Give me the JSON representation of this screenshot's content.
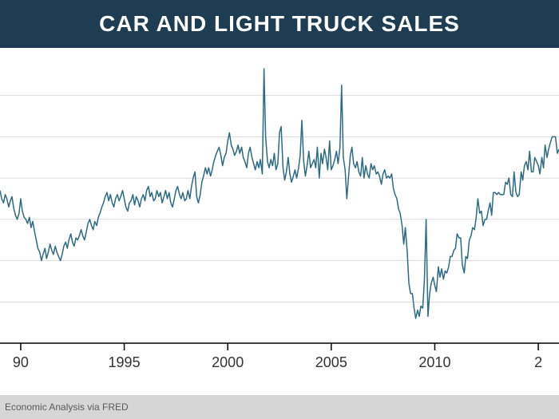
{
  "title": "CAR AND LIGHT TRUCK SALES",
  "title_fontsize": 28,
  "title_bg_color": "#1f3d52",
  "title_text_color": "#ffffff",
  "source_text": "Economic Analysis via FRED",
  "source_bg_color": "#d6d6d6",
  "chart": {
    "type": "line",
    "background_color": "#ffffff",
    "line_color": "#2d6a84",
    "line_width": 1.5,
    "axis_color": "#000000",
    "grid_color": "#c8c8c8",
    "grid_width": 0.6,
    "x_range": [
      1989,
      2016
    ],
    "y_range": [
      8,
      22
    ],
    "y_gridlines": [
      10,
      12,
      14,
      16,
      18,
      20
    ],
    "x_ticks": [
      1990,
      1995,
      2000,
      2005,
      2010,
      2015
    ],
    "x_tick_labels": [
      "90",
      "1995",
      "2000",
      "2005",
      "2010",
      "2"
    ],
    "tick_fontsize": 18,
    "tick_color": "#333333",
    "series": [
      [
        1989.0,
        15.4
      ],
      [
        1989.08,
        15.0
      ],
      [
        1989.17,
        14.8
      ],
      [
        1989.25,
        15.2
      ],
      [
        1989.33,
        15.0
      ],
      [
        1989.42,
        14.6
      ],
      [
        1989.5,
        14.9
      ],
      [
        1989.58,
        15.1
      ],
      [
        1989.67,
        14.5
      ],
      [
        1989.75,
        14.2
      ],
      [
        1989.83,
        14.0
      ],
      [
        1989.92,
        14.3
      ],
      [
        1990.0,
        15.0
      ],
      [
        1990.08,
        14.4
      ],
      [
        1990.17,
        14.1
      ],
      [
        1990.25,
        14.0
      ],
      [
        1990.33,
        13.8
      ],
      [
        1990.42,
        14.1
      ],
      [
        1990.5,
        13.6
      ],
      [
        1990.58,
        13.9
      ],
      [
        1990.67,
        13.4
      ],
      [
        1990.75,
        13.0
      ],
      [
        1990.83,
        12.6
      ],
      [
        1990.92,
        12.4
      ],
      [
        1991.0,
        12.0
      ],
      [
        1991.08,
        12.3
      ],
      [
        1991.17,
        12.6
      ],
      [
        1991.25,
        12.1
      ],
      [
        1991.33,
        12.4
      ],
      [
        1991.42,
        12.8
      ],
      [
        1991.5,
        12.5
      ],
      [
        1991.58,
        12.3
      ],
      [
        1991.67,
        12.7
      ],
      [
        1991.75,
        12.4
      ],
      [
        1991.83,
        12.2
      ],
      [
        1991.92,
        12.0
      ],
      [
        1992.0,
        12.3
      ],
      [
        1992.08,
        12.7
      ],
      [
        1992.17,
        12.9
      ],
      [
        1992.25,
        12.6
      ],
      [
        1992.33,
        13.0
      ],
      [
        1992.42,
        13.3
      ],
      [
        1992.5,
        12.9
      ],
      [
        1992.58,
        12.7
      ],
      [
        1992.67,
        13.1
      ],
      [
        1992.75,
        13.0
      ],
      [
        1992.83,
        13.2
      ],
      [
        1992.92,
        13.5
      ],
      [
        1993.0,
        13.2
      ],
      [
        1993.08,
        13.0
      ],
      [
        1993.17,
        13.4
      ],
      [
        1993.25,
        13.8
      ],
      [
        1993.33,
        14.0
      ],
      [
        1993.42,
        13.7
      ],
      [
        1993.5,
        13.5
      ],
      [
        1993.58,
        13.9
      ],
      [
        1993.67,
        13.7
      ],
      [
        1993.75,
        14.1
      ],
      [
        1993.83,
        14.3
      ],
      [
        1993.92,
        14.6
      ],
      [
        1994.0,
        14.8
      ],
      [
        1994.08,
        15.1
      ],
      [
        1994.17,
        15.3
      ],
      [
        1994.25,
        14.9
      ],
      [
        1994.33,
        15.2
      ],
      [
        1994.42,
        14.8
      ],
      [
        1994.5,
        14.6
      ],
      [
        1994.58,
        15.0
      ],
      [
        1994.67,
        15.2
      ],
      [
        1994.75,
        14.9
      ],
      [
        1994.83,
        15.1
      ],
      [
        1994.92,
        15.4
      ],
      [
        1995.0,
        15.0
      ],
      [
        1995.08,
        14.6
      ],
      [
        1995.17,
        14.4
      ],
      [
        1995.25,
        14.8
      ],
      [
        1995.33,
        14.9
      ],
      [
        1995.42,
        15.2
      ],
      [
        1995.5,
        14.7
      ],
      [
        1995.58,
        15.1
      ],
      [
        1995.67,
        14.9
      ],
      [
        1995.75,
        14.6
      ],
      [
        1995.83,
        15.0
      ],
      [
        1995.92,
        15.2
      ],
      [
        1996.0,
        14.9
      ],
      [
        1996.08,
        15.4
      ],
      [
        1996.17,
        15.6
      ],
      [
        1996.25,
        15.1
      ],
      [
        1996.33,
        15.3
      ],
      [
        1996.42,
        14.9
      ],
      [
        1996.5,
        15.0
      ],
      [
        1996.58,
        15.4
      ],
      [
        1996.67,
        15.1
      ],
      [
        1996.75,
        15.3
      ],
      [
        1996.83,
        14.8
      ],
      [
        1996.92,
        15.1
      ],
      [
        1997.0,
        15.4
      ],
      [
        1997.08,
        15.0
      ],
      [
        1997.17,
        15.3
      ],
      [
        1997.25,
        14.8
      ],
      [
        1997.33,
        14.6
      ],
      [
        1997.42,
        15.0
      ],
      [
        1997.5,
        15.4
      ],
      [
        1997.58,
        15.6
      ],
      [
        1997.67,
        15.2
      ],
      [
        1997.75,
        15.0
      ],
      [
        1997.83,
        15.3
      ],
      [
        1997.92,
        14.9
      ],
      [
        1998.0,
        15.0
      ],
      [
        1998.08,
        15.4
      ],
      [
        1998.17,
        15.0
      ],
      [
        1998.25,
        15.6
      ],
      [
        1998.33,
        16.0
      ],
      [
        1998.42,
        16.3
      ],
      [
        1998.5,
        15.1
      ],
      [
        1998.58,
        14.8
      ],
      [
        1998.67,
        15.2
      ],
      [
        1998.75,
        15.8
      ],
      [
        1998.83,
        16.1
      ],
      [
        1998.92,
        16.5
      ],
      [
        1999.0,
        16.2
      ],
      [
        1999.08,
        16.5
      ],
      [
        1999.17,
        16.1
      ],
      [
        1999.25,
        16.4
      ],
      [
        1999.33,
        16.8
      ],
      [
        1999.42,
        17.1
      ],
      [
        1999.5,
        17.3
      ],
      [
        1999.58,
        17.5
      ],
      [
        1999.67,
        17.1
      ],
      [
        1999.75,
        16.6
      ],
      [
        1999.83,
        17.0
      ],
      [
        1999.92,
        17.2
      ],
      [
        2000.0,
        17.8
      ],
      [
        2000.08,
        18.2
      ],
      [
        2000.17,
        17.6
      ],
      [
        2000.25,
        17.4
      ],
      [
        2000.33,
        17.1
      ],
      [
        2000.42,
        17.3
      ],
      [
        2000.5,
        17.6
      ],
      [
        2000.58,
        17.2
      ],
      [
        2000.67,
        17.5
      ],
      [
        2000.75,
        17.0
      ],
      [
        2000.83,
        16.8
      ],
      [
        2000.92,
        16.5
      ],
      [
        2001.0,
        17.2
      ],
      [
        2001.08,
        17.5
      ],
      [
        2001.17,
        17.0
      ],
      [
        2001.25,
        16.7
      ],
      [
        2001.33,
        16.4
      ],
      [
        2001.42,
        16.8
      ],
      [
        2001.5,
        16.5
      ],
      [
        2001.58,
        16.9
      ],
      [
        2001.67,
        16.2
      ],
      [
        2001.75,
        21.3
      ],
      [
        2001.83,
        18.0
      ],
      [
        2001.92,
        16.8
      ],
      [
        2002.0,
        16.5
      ],
      [
        2002.08,
        16.9
      ],
      [
        2002.17,
        16.6
      ],
      [
        2002.25,
        17.2
      ],
      [
        2002.33,
        16.4
      ],
      [
        2002.42,
        16.7
      ],
      [
        2002.5,
        18.2
      ],
      [
        2002.58,
        18.5
      ],
      [
        2002.67,
        16.5
      ],
      [
        2002.75,
        15.9
      ],
      [
        2002.83,
        16.3
      ],
      [
        2002.92,
        17.0
      ],
      [
        2003.0,
        16.2
      ],
      [
        2003.08,
        15.8
      ],
      [
        2003.17,
        16.1
      ],
      [
        2003.25,
        16.4
      ],
      [
        2003.33,
        16.0
      ],
      [
        2003.42,
        16.5
      ],
      [
        2003.5,
        17.1
      ],
      [
        2003.58,
        18.8
      ],
      [
        2003.67,
        16.8
      ],
      [
        2003.75,
        16.1
      ],
      [
        2003.83,
        16.6
      ],
      [
        2003.92,
        17.3
      ],
      [
        2004.0,
        16.5
      ],
      [
        2004.08,
        16.7
      ],
      [
        2004.17,
        16.9
      ],
      [
        2004.25,
        16.5
      ],
      [
        2004.33,
        17.5
      ],
      [
        2004.42,
        16.0
      ],
      [
        2004.5,
        17.2
      ],
      [
        2004.58,
        16.7
      ],
      [
        2004.67,
        17.4
      ],
      [
        2004.75,
        17.0
      ],
      [
        2004.83,
        16.4
      ],
      [
        2004.92,
        17.8
      ],
      [
        2005.0,
        16.4
      ],
      [
        2005.08,
        16.6
      ],
      [
        2005.17,
        16.9
      ],
      [
        2005.25,
        17.3
      ],
      [
        2005.33,
        16.7
      ],
      [
        2005.42,
        17.5
      ],
      [
        2005.5,
        20.5
      ],
      [
        2005.58,
        17.0
      ],
      [
        2005.67,
        16.4
      ],
      [
        2005.75,
        15.0
      ],
      [
        2005.83,
        16.0
      ],
      [
        2005.92,
        17.1
      ],
      [
        2006.0,
        17.5
      ],
      [
        2006.08,
        16.7
      ],
      [
        2006.17,
        16.5
      ],
      [
        2006.25,
        16.8
      ],
      [
        2006.33,
        16.3
      ],
      [
        2006.42,
        16.1
      ],
      [
        2006.5,
        17.0
      ],
      [
        2006.58,
        16.0
      ],
      [
        2006.67,
        16.6
      ],
      [
        2006.75,
        16.2
      ],
      [
        2006.83,
        16.0
      ],
      [
        2006.92,
        16.7
      ],
      [
        2007.0,
        16.4
      ],
      [
        2007.08,
        16.6
      ],
      [
        2007.17,
        16.2
      ],
      [
        2007.25,
        16.3
      ],
      [
        2007.33,
        16.1
      ],
      [
        2007.42,
        15.7
      ],
      [
        2007.5,
        16.2
      ],
      [
        2007.58,
        16.4
      ],
      [
        2007.67,
        16.0
      ],
      [
        2007.75,
        16.1
      ],
      [
        2007.83,
        16.0
      ],
      [
        2007.92,
        16.2
      ],
      [
        2008.0,
        15.5
      ],
      [
        2008.08,
        15.2
      ],
      [
        2008.17,
        15.0
      ],
      [
        2008.25,
        14.5
      ],
      [
        2008.33,
        14.3
      ],
      [
        2008.42,
        13.7
      ],
      [
        2008.5,
        12.8
      ],
      [
        2008.58,
        13.6
      ],
      [
        2008.67,
        12.4
      ],
      [
        2008.75,
        10.9
      ],
      [
        2008.83,
        10.4
      ],
      [
        2008.92,
        10.4
      ],
      [
        2009.0,
        9.7
      ],
      [
        2009.08,
        9.2
      ],
      [
        2009.17,
        9.6
      ],
      [
        2009.25,
        9.3
      ],
      [
        2009.33,
        9.8
      ],
      [
        2009.42,
        9.7
      ],
      [
        2009.5,
        11.1
      ],
      [
        2009.58,
        14.0
      ],
      [
        2009.67,
        9.3
      ],
      [
        2009.75,
        10.4
      ],
      [
        2009.83,
        10.9
      ],
      [
        2009.92,
        11.2
      ],
      [
        2010.0,
        10.8
      ],
      [
        2010.08,
        10.5
      ],
      [
        2010.17,
        11.7
      ],
      [
        2010.25,
        11.2
      ],
      [
        2010.33,
        11.6
      ],
      [
        2010.42,
        11.1
      ],
      [
        2010.5,
        11.5
      ],
      [
        2010.58,
        11.4
      ],
      [
        2010.67,
        11.7
      ],
      [
        2010.75,
        12.2
      ],
      [
        2010.83,
        12.2
      ],
      [
        2010.92,
        12.5
      ],
      [
        2011.0,
        12.6
      ],
      [
        2011.08,
        13.3
      ],
      [
        2011.17,
        13.1
      ],
      [
        2011.25,
        13.1
      ],
      [
        2011.33,
        11.8
      ],
      [
        2011.42,
        11.4
      ],
      [
        2011.5,
        12.2
      ],
      [
        2011.58,
        12.1
      ],
      [
        2011.67,
        13.0
      ],
      [
        2011.75,
        13.2
      ],
      [
        2011.83,
        13.6
      ],
      [
        2011.92,
        13.5
      ],
      [
        2012.0,
        14.1
      ],
      [
        2012.08,
        15.0
      ],
      [
        2012.17,
        14.3
      ],
      [
        2012.25,
        14.4
      ],
      [
        2012.33,
        13.7
      ],
      [
        2012.42,
        14.0
      ],
      [
        2012.5,
        14.0
      ],
      [
        2012.58,
        14.4
      ],
      [
        2012.67,
        14.8
      ],
      [
        2012.75,
        14.2
      ],
      [
        2012.83,
        15.3
      ],
      [
        2012.92,
        15.3
      ],
      [
        2013.0,
        15.2
      ],
      [
        2013.08,
        15.3
      ],
      [
        2013.17,
        15.2
      ],
      [
        2013.25,
        15.2
      ],
      [
        2013.33,
        15.2
      ],
      [
        2013.42,
        15.8
      ],
      [
        2013.5,
        15.7
      ],
      [
        2013.58,
        16.0
      ],
      [
        2013.67,
        15.2
      ],
      [
        2013.75,
        15.1
      ],
      [
        2013.83,
        16.3
      ],
      [
        2013.92,
        15.3
      ],
      [
        2014.0,
        15.1
      ],
      [
        2014.08,
        15.2
      ],
      [
        2014.17,
        16.3
      ],
      [
        2014.25,
        15.9
      ],
      [
        2014.33,
        16.6
      ],
      [
        2014.42,
        16.8
      ],
      [
        2014.5,
        16.4
      ],
      [
        2014.58,
        17.3
      ],
      [
        2014.67,
        16.3
      ],
      [
        2014.75,
        16.3
      ],
      [
        2014.83,
        17.0
      ],
      [
        2014.92,
        16.8
      ],
      [
        2015.0,
        16.6
      ],
      [
        2015.08,
        16.2
      ],
      [
        2015.17,
        17.0
      ],
      [
        2015.25,
        16.5
      ],
      [
        2015.33,
        17.6
      ],
      [
        2015.42,
        17.0
      ],
      [
        2015.5,
        17.4
      ],
      [
        2015.58,
        17.7
      ],
      [
        2015.67,
        18.0
      ],
      [
        2015.75,
        18.0
      ],
      [
        2015.83,
        18.0
      ],
      [
        2015.92,
        17.2
      ],
      [
        2016.0,
        17.4
      ]
    ]
  }
}
